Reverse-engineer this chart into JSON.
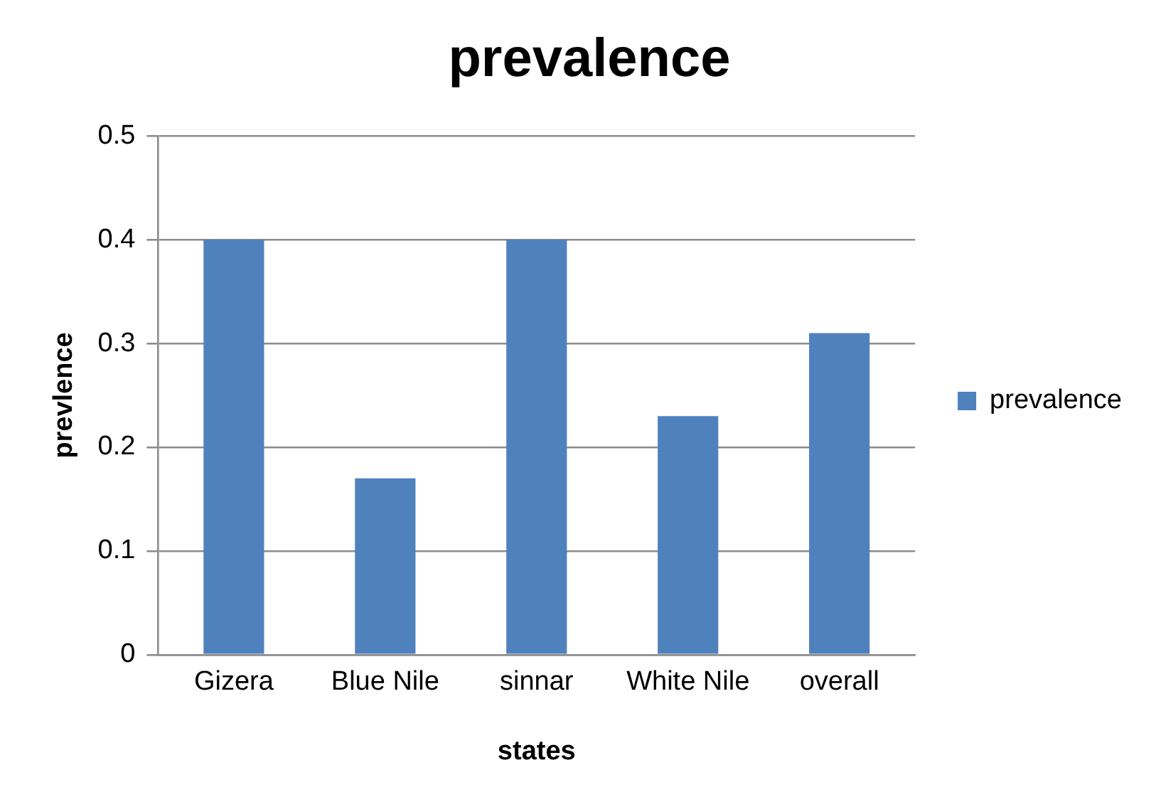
{
  "chart_data": {
    "type": "bar",
    "title": "prevalence",
    "xlabel": "states",
    "ylabel": "prevlence",
    "categories": [
      "Gizera",
      "Blue Nile",
      "sinnar",
      "White Nile",
      "overall"
    ],
    "series": [
      {
        "name": "prevalence",
        "color": "#4f81bd",
        "values": [
          0.4,
          0.17,
          0.4,
          0.23,
          0.31
        ]
      }
    ],
    "ylim": [
      0,
      0.5
    ],
    "yticks": [
      0,
      0.1,
      0.2,
      0.3,
      0.4,
      0.5
    ],
    "grid": "y",
    "legend": "right"
  }
}
